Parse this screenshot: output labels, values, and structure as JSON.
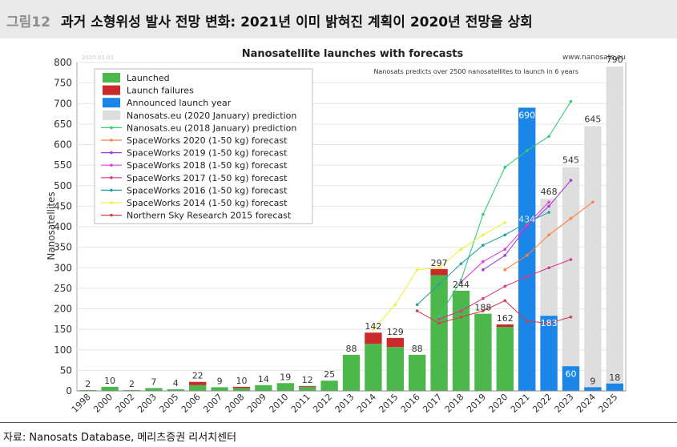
{
  "header": {
    "figure_label": "그림12",
    "title": "과거 소형위성 발사 전망 변화: 2021년 이미 밝혀진 계획이 2020년 전망을 상회"
  },
  "source": "자료: Nanosats Database, 메리츠증권 리서치센터",
  "colors": {
    "launched": "#4cb84c",
    "failures": "#cc2a2a",
    "announced": "#1a86e8",
    "prediction2020": "#dedede",
    "pred2018": "#33cc77",
    "sw2020": "#ff8040",
    "sw2019": "#a040d0",
    "sw2018": "#e040e0",
    "sw2017": "#d83a8a",
    "sw2016": "#20a0a0",
    "sw2014": "#f0f040",
    "nsr2015": "#d04050"
  },
  "chart_data": {
    "type": "bar",
    "title": "Nanosatellite launches with forecasts",
    "watermark_date": "2020.01.01",
    "site": "www.nanosats.eu",
    "subtitle": "Nanosats predicts over 2500 nanosatellites to launch in 6 years",
    "ylabel": "Nanosatellites",
    "ylim": [
      0,
      800
    ],
    "yticks": [
      0,
      50,
      100,
      150,
      200,
      250,
      300,
      350,
      400,
      450,
      500,
      550,
      600,
      650,
      700,
      750,
      800
    ],
    "categories": [
      "1998",
      "2000",
      "2002",
      "2003",
      "2005",
      "2006",
      "2007",
      "2008",
      "2009",
      "2010",
      "2011",
      "2012",
      "2013",
      "2014",
      "2015",
      "2016",
      "2017",
      "2018",
      "2019",
      "2020",
      "2021",
      "2022",
      "2023",
      "2024",
      "2025"
    ],
    "launched": [
      2,
      10,
      2,
      7,
      4,
      14,
      9,
      7,
      14,
      19,
      10,
      25,
      88,
      115,
      107,
      88,
      282,
      244,
      188,
      156,
      0,
      0,
      0,
      0,
      0
    ],
    "failures": [
      0,
      0,
      0,
      0,
      0,
      8,
      0,
      3,
      0,
      0,
      2,
      0,
      0,
      27,
      22,
      0,
      15,
      0,
      0,
      6,
      0,
      0,
      0,
      0,
      0
    ],
    "announced": [
      0,
      0,
      0,
      0,
      0,
      0,
      0,
      0,
      0,
      0,
      0,
      0,
      0,
      0,
      0,
      0,
      0,
      0,
      0,
      0,
      690,
      183,
      60,
      9,
      18
    ],
    "prediction_2020": [
      0,
      0,
      0,
      0,
      0,
      0,
      0,
      0,
      0,
      0,
      0,
      0,
      0,
      0,
      0,
      0,
      0,
      0,
      0,
      0,
      434,
      468,
      545,
      645,
      790
    ],
    "bar_labels": [
      "2",
      "10",
      "2",
      "7",
      "4",
      "22",
      "9",
      "10",
      "14",
      "19",
      "12",
      "25",
      "88",
      "142",
      "129",
      "88",
      "297",
      "244",
      "188",
      "162",
      "690",
      "183",
      "60",
      "9",
      "18"
    ],
    "prediction_labels": [
      "",
      "",
      "",
      "",
      "",
      "",
      "",
      "",
      "",
      "",
      "",
      "",
      "",
      "",
      "",
      "",
      "",
      "",
      "",
      "",
      "434",
      "468",
      "545",
      "645",
      "790"
    ],
    "forecast_series": [
      {
        "name": "Nanosats.eu (2018 January) prediction",
        "color_key": "pred2018",
        "x": [
          "2017",
          "2018",
          "2019",
          "2020",
          "2021",
          "2022",
          "2023"
        ],
        "values": [
          180,
          270,
          430,
          545,
          585,
          620,
          705
        ]
      },
      {
        "name": "SpaceWorks 2020 (1-50 kg) forecast",
        "color_key": "sw2020",
        "x": [
          "2020",
          "2021",
          "2022",
          "2023",
          "2024"
        ],
        "values": [
          295,
          330,
          380,
          420,
          460
        ]
      },
      {
        "name": "SpaceWorks 2019 (1-50 kg) forecast",
        "color_key": "sw2019",
        "x": [
          "2019",
          "2020",
          "2021",
          "2022",
          "2023"
        ],
        "values": [
          295,
          330,
          400,
          450,
          513
        ]
      },
      {
        "name": "SpaceWorks 2018 (1-50 kg) forecast",
        "color_key": "sw2018",
        "x": [
          "2018",
          "2019",
          "2020",
          "2021",
          "2022"
        ],
        "values": [
          265,
          315,
          345,
          405,
          460
        ]
      },
      {
        "name": "SpaceWorks 2017 (1-50 kg) forecast",
        "color_key": "sw2017",
        "x": [
          "2017",
          "2018",
          "2019",
          "2020",
          "2021",
          "2022",
          "2023"
        ],
        "values": [
          175,
          195,
          225,
          255,
          278,
          300,
          320
        ]
      },
      {
        "name": "SpaceWorks 2016 (1-50 kg) forecast",
        "color_key": "sw2016",
        "x": [
          "2016",
          "2017",
          "2018",
          "2019",
          "2020",
          "2021",
          "2022"
        ],
        "values": [
          210,
          260,
          310,
          355,
          380,
          410,
          435
        ]
      },
      {
        "name": "SpaceWorks 2014 (1-50 kg) forecast",
        "color_key": "sw2014",
        "x": [
          "2014",
          "2015",
          "2016",
          "2017",
          "2018",
          "2019",
          "2020"
        ],
        "values": [
          150,
          210,
          295,
          300,
          345,
          380,
          410
        ]
      },
      {
        "name": "Northern Sky Research 2015 forecast",
        "color_key": "nsr2015",
        "x": [
          "2016",
          "2017",
          "2018",
          "2019",
          "2020",
          "2021",
          "2022",
          "2023"
        ],
        "values": [
          195,
          165,
          180,
          195,
          220,
          170,
          165,
          180
        ]
      }
    ],
    "legend": [
      {
        "label": "Launched",
        "kind": "box",
        "color_key": "launched"
      },
      {
        "label": "Launch failures",
        "kind": "box",
        "color_key": "failures"
      },
      {
        "label": "Announced launch year",
        "kind": "box",
        "color_key": "announced"
      },
      {
        "label": "Nanosats.eu (2020 January) prediction",
        "kind": "box",
        "color_key": "prediction2020"
      },
      {
        "label": "Nanosats.eu (2018 January) prediction",
        "kind": "line",
        "color_key": "pred2018"
      },
      {
        "label": "SpaceWorks 2020 (1-50 kg) forecast",
        "kind": "line",
        "color_key": "sw2020"
      },
      {
        "label": "SpaceWorks 2019 (1-50 kg) forecast",
        "kind": "line",
        "color_key": "sw2019"
      },
      {
        "label": "SpaceWorks 2018 (1-50 kg) forecast",
        "kind": "line",
        "color_key": "sw2018"
      },
      {
        "label": "SpaceWorks 2017 (1-50 kg) forecast",
        "kind": "line",
        "color_key": "sw2017"
      },
      {
        "label": "SpaceWorks 2016 (1-50 kg) forecast",
        "kind": "line",
        "color_key": "sw2016"
      },
      {
        "label": "SpaceWorks 2014 (1-50 kg) forecast",
        "kind": "line",
        "color_key": "sw2014"
      },
      {
        "label": "Northern Sky Research 2015 forecast",
        "kind": "line",
        "color_key": "nsr2015"
      }
    ]
  }
}
